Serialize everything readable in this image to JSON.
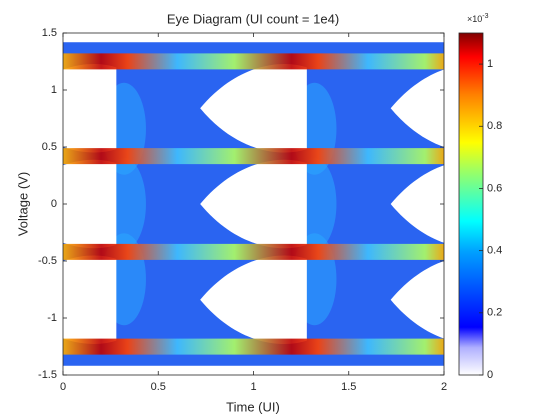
{
  "chart_data": {
    "type": "heatmap",
    "title": "Eye Diagram (UI count = 1e4)",
    "x_label": "Time (UI)",
    "y_label": "Voltage (V)",
    "xlim": [
      0,
      2
    ],
    "xticks": [
      0,
      0.5,
      1,
      1.5,
      2
    ],
    "ylim": [
      -1.5,
      1.5
    ],
    "yticks": [
      -1.5,
      -1,
      -0.5,
      0,
      0.5,
      1,
      1.5
    ],
    "colorbar": {
      "clim": [
        0,
        1.1
      ],
      "ticks": [
        0,
        0.2,
        0.4,
        0.6,
        0.8,
        1
      ],
      "multiplier_base": "×10",
      "multiplier_exponent": "-3"
    }
  }
}
